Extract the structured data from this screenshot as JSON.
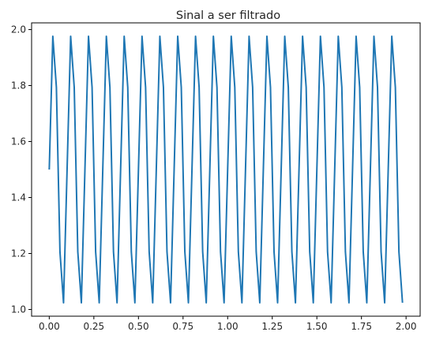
{
  "chart_data": {
    "type": "line",
    "title": "Sinal a ser filtrado",
    "xlabel": "",
    "ylabel": "",
    "xlim": [
      -0.099,
      2.079
    ],
    "ylim": [
      0.976,
      2.024
    ],
    "xticks": [
      0.0,
      0.25,
      0.5,
      0.75,
      1.0,
      1.25,
      1.5,
      1.75,
      2.0
    ],
    "xtick_labels": [
      "0.00",
      "0.25",
      "0.50",
      "0.75",
      "1.00",
      "1.25",
      "1.50",
      "1.75",
      "2.00"
    ],
    "yticks": [
      1.0,
      1.2,
      1.4,
      1.6,
      1.8,
      2.0
    ],
    "ytick_labels": [
      "1.0",
      "1.2",
      "1.4",
      "1.6",
      "1.8",
      "2.0"
    ],
    "grid": false,
    "line_color": "#1f77b4",
    "series": [
      {
        "x": [
          0.0,
          0.02,
          0.04,
          0.06,
          0.08,
          0.1,
          0.12,
          0.14,
          0.16,
          0.18,
          0.2,
          0.22,
          0.24,
          0.26,
          0.28,
          0.3,
          0.32,
          0.34,
          0.36,
          0.38,
          0.4,
          0.42,
          0.44,
          0.46,
          0.48,
          0.5,
          0.52,
          0.54,
          0.56,
          0.58,
          0.6,
          0.62,
          0.64,
          0.66,
          0.68,
          0.7,
          0.72,
          0.74,
          0.76,
          0.78,
          0.8,
          0.82,
          0.84,
          0.86,
          0.88,
          0.9,
          0.92,
          0.94,
          0.96,
          0.98,
          1.0,
          1.02,
          1.04,
          1.06,
          1.08,
          1.1,
          1.12,
          1.14,
          1.16,
          1.18,
          1.2,
          1.22,
          1.24,
          1.26,
          1.28,
          1.3,
          1.32,
          1.34,
          1.36,
          1.38,
          1.4,
          1.42,
          1.44,
          1.46,
          1.48,
          1.5,
          1.52,
          1.54,
          1.56,
          1.58,
          1.6,
          1.62,
          1.64,
          1.66,
          1.68,
          1.7,
          1.72,
          1.74,
          1.76,
          1.78,
          1.8,
          1.82,
          1.84,
          1.86,
          1.88,
          1.9,
          1.92,
          1.94,
          1.96,
          1.98
        ],
        "y": [
          1.5,
          1.976,
          1.794,
          1.206,
          1.024,
          1.5,
          1.976,
          1.794,
          1.206,
          1.024,
          1.5,
          1.976,
          1.794,
          1.206,
          1.024,
          1.5,
          1.976,
          1.794,
          1.206,
          1.024,
          1.5,
          1.976,
          1.794,
          1.206,
          1.024,
          1.5,
          1.976,
          1.794,
          1.206,
          1.024,
          1.5,
          1.976,
          1.794,
          1.206,
          1.024,
          1.5,
          1.976,
          1.794,
          1.206,
          1.024,
          1.5,
          1.976,
          1.794,
          1.206,
          1.024,
          1.5,
          1.976,
          1.794,
          1.206,
          1.024,
          1.5,
          1.976,
          1.794,
          1.206,
          1.024,
          1.5,
          1.976,
          1.794,
          1.206,
          1.024,
          1.5,
          1.976,
          1.794,
          1.206,
          1.024,
          1.5,
          1.976,
          1.794,
          1.206,
          1.024,
          1.5,
          1.976,
          1.794,
          1.206,
          1.024,
          1.5,
          1.976,
          1.794,
          1.206,
          1.024,
          1.5,
          1.976,
          1.794,
          1.206,
          1.024,
          1.5,
          1.976,
          1.794,
          1.206,
          1.024,
          1.5,
          1.976,
          1.794,
          1.206,
          1.024,
          1.5,
          1.976,
          1.794,
          1.206,
          1.024
        ]
      }
    ]
  }
}
